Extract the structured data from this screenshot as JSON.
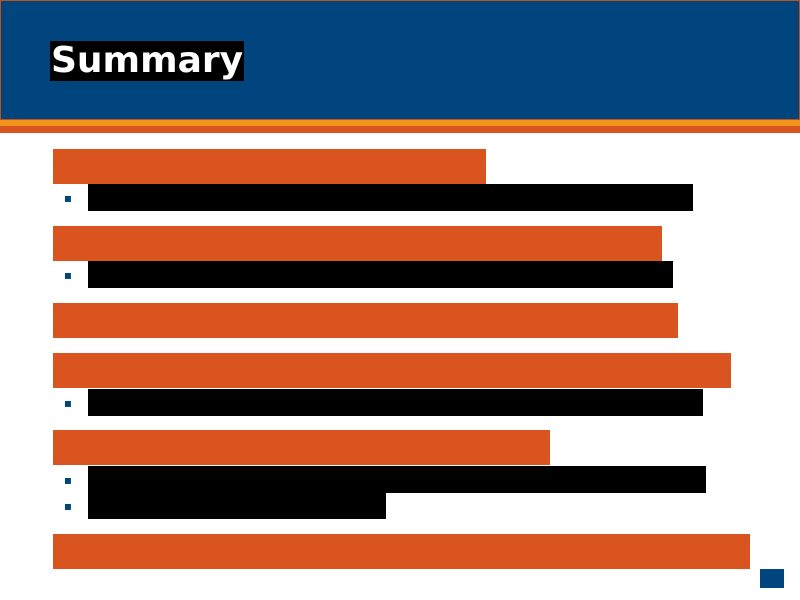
{
  "slide": {
    "title": "Summary"
  },
  "items": [
    {
      "heading": "",
      "bullets": [
        {
          "icon": "bullet-icon",
          "glyph": "▪",
          "text": ""
        }
      ]
    },
    {
      "heading": "",
      "bullets": [
        {
          "icon": "bullet-icon",
          "glyph": "▪",
          "text": ""
        }
      ]
    },
    {
      "heading": "",
      "bullets": []
    },
    {
      "heading": "",
      "bullets": [
        {
          "icon": "bullet-icon",
          "glyph": "▪",
          "text": ""
        }
      ]
    },
    {
      "heading": "",
      "bullets": [
        {
          "icon": "bullet-icon",
          "glyph": "▪",
          "text": ""
        },
        {
          "icon": "bullet-icon",
          "glyph": "▪",
          "text": ""
        }
      ]
    },
    {
      "heading": "",
      "bullets": []
    }
  ],
  "colors": {
    "header_bg": "#00457e",
    "accent_orange": "#d9541e",
    "accent_light_orange": "#f2931c",
    "redaction": "#000000"
  }
}
